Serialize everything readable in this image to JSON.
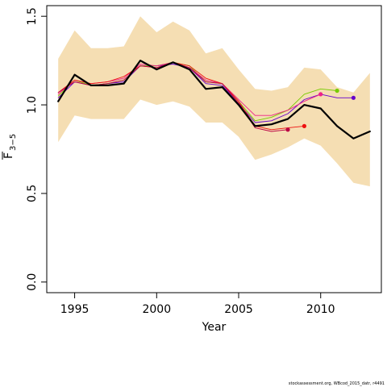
{
  "chart_data": {
    "type": "line",
    "xlabel": "Year",
    "ylabel_main": "F",
    "ylabel_sub": "3−5",
    "xlim": [
      1993.3,
      2013.7
    ],
    "ylim": [
      -0.06,
      1.56
    ],
    "xticks": [
      1995,
      2000,
      2005,
      2010
    ],
    "yticks": [
      0.0,
      0.5,
      1.0,
      1.5
    ],
    "ytick_labels": [
      "0.0",
      "0.5",
      "1.0",
      "1.5"
    ],
    "grid": false,
    "band": {
      "color": "#F5DEB3",
      "x": [
        1994,
        1995,
        1996,
        1997,
        1998,
        1999,
        2000,
        2001,
        2002,
        2003,
        2004,
        2005,
        2006,
        2007,
        2008,
        2009,
        2010,
        2011,
        2012,
        2013
      ],
      "upper": [
        1.26,
        1.42,
        1.32,
        1.32,
        1.33,
        1.5,
        1.41,
        1.47,
        1.42,
        1.29,
        1.32,
        1.2,
        1.09,
        1.08,
        1.1,
        1.21,
        1.2,
        1.1,
        1.07,
        1.18
      ],
      "lower": [
        0.79,
        0.94,
        0.92,
        0.92,
        0.92,
        1.03,
        1.0,
        1.02,
        0.99,
        0.9,
        0.9,
        0.82,
        0.69,
        0.72,
        0.76,
        0.81,
        0.77,
        0.67,
        0.56,
        0.54
      ]
    },
    "series": [
      {
        "color": "#000000",
        "width": 2.2,
        "endpoint": false,
        "x": [
          1994,
          1995,
          1996,
          1997,
          1998,
          1999,
          2000,
          2001,
          2002,
          2003,
          2004,
          2005,
          2006,
          2007,
          2008,
          2009,
          2010,
          2011,
          2012,
          2013
        ],
        "y": [
          1.02,
          1.17,
          1.11,
          1.11,
          1.12,
          1.25,
          1.2,
          1.24,
          1.2,
          1.09,
          1.1,
          1.0,
          0.88,
          0.89,
          0.92,
          1.0,
          0.98,
          0.88,
          0.81,
          0.85
        ]
      },
      {
        "color": "#6600CC",
        "width": 0.9,
        "endpoint": true,
        "x": [
          1994,
          1995,
          1996,
          1997,
          1998,
          1999,
          2000,
          2001,
          2002,
          2003,
          2004,
          2005,
          2006,
          2007,
          2008,
          2009,
          2010,
          2011,
          2012
        ],
        "y": [
          1.04,
          1.13,
          1.11,
          1.12,
          1.13,
          1.22,
          1.22,
          1.23,
          1.21,
          1.12,
          1.11,
          1.01,
          0.9,
          0.91,
          0.95,
          1.03,
          1.06,
          1.04,
          1.04
        ]
      },
      {
        "color": "#77CC00",
        "width": 0.9,
        "endpoint": true,
        "x": [
          1994,
          1995,
          1996,
          1997,
          1998,
          1999,
          2000,
          2001,
          2002,
          2003,
          2004,
          2005,
          2006,
          2007,
          2008,
          2009,
          2010,
          2011
        ],
        "y": [
          1.05,
          1.14,
          1.11,
          1.12,
          1.14,
          1.22,
          1.22,
          1.24,
          1.22,
          1.13,
          1.12,
          1.02,
          0.91,
          0.93,
          0.97,
          1.06,
          1.09,
          1.08
        ]
      },
      {
        "color": "#EE2288",
        "width": 0.9,
        "endpoint": true,
        "x": [
          1994,
          1995,
          1996,
          1997,
          1998,
          1999,
          2000,
          2001,
          2002,
          2003,
          2004,
          2005,
          2006,
          2007,
          2008,
          2009,
          2010
        ],
        "y": [
          1.06,
          1.14,
          1.12,
          1.13,
          1.15,
          1.23,
          1.22,
          1.24,
          1.21,
          1.14,
          1.12,
          1.03,
          0.94,
          0.94,
          0.97,
          1.02,
          1.06
        ]
      },
      {
        "color": "#EE1111",
        "width": 0.9,
        "endpoint": true,
        "x": [
          1994,
          1995,
          1996,
          1997,
          1998,
          1999,
          2000,
          2001,
          2002,
          2003,
          2004,
          2005,
          2006,
          2007,
          2008,
          2009
        ],
        "y": [
          1.07,
          1.14,
          1.12,
          1.13,
          1.16,
          1.22,
          1.21,
          1.24,
          1.22,
          1.15,
          1.12,
          1.02,
          0.88,
          0.86,
          0.87,
          0.88
        ]
      },
      {
        "color": "#BB0044",
        "width": 0.9,
        "endpoint": true,
        "x": [
          1994,
          1995,
          1996,
          1997,
          1998,
          1999,
          2000,
          2001,
          2002,
          2003,
          2004,
          2005,
          2006,
          2007,
          2008
        ],
        "y": [
          1.07,
          1.13,
          1.11,
          1.12,
          1.14,
          1.22,
          1.21,
          1.24,
          1.21,
          1.13,
          1.12,
          1.01,
          0.87,
          0.85,
          0.86
        ]
      }
    ]
  },
  "footnote": "stockassessment.org, WBcod_2015_datr, r4491"
}
